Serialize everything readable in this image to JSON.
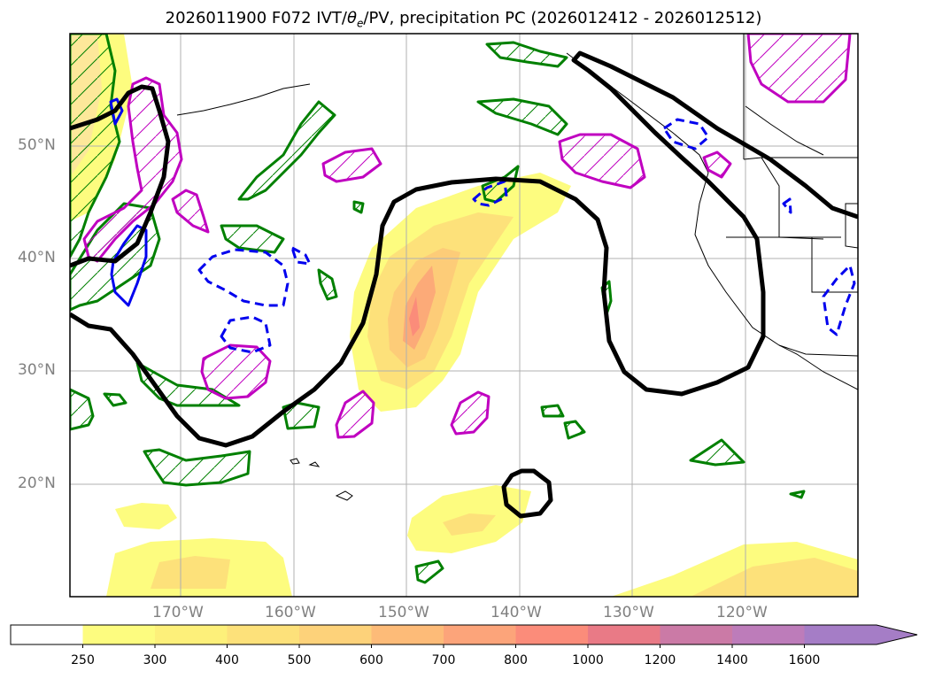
{
  "title": {
    "prefix": "2026011900 F072 IVT/",
    "theta": "θ",
    "theta_sub": "e",
    "suffix": "/PV, precipitation PC (2026012412 - 2026012512)"
  },
  "axes": {
    "lat_labels": [
      "50°N",
      "40°N",
      "30°N",
      "20°N"
    ],
    "lon_labels": [
      "170°W",
      "160°W",
      "150°W",
      "140°W",
      "130°W",
      "120°W"
    ]
  },
  "colorbar": {
    "levels": [
      "250",
      "300",
      "400",
      "500",
      "600",
      "700",
      "800",
      "1000",
      "1200",
      "1400",
      "1600"
    ],
    "colors": [
      "#ffffff",
      "#fdfc7f",
      "#fdf07a",
      "#fde17a",
      "#fdd27a",
      "#fdbb78",
      "#fca47a",
      "#fb8c7a",
      "#e97a86",
      "#cb7aa6",
      "#bd7cba",
      "#a57dc6"
    ]
  },
  "colors": {
    "ivt_fill_light": "#fdfc7f",
    "ivt_fill_mid": "#fde17a",
    "ivt_fill_high": "#fdbb78",
    "ivt_fill_peak": "#fb8c7a",
    "contour_green": "#008000",
    "contour_magenta": "#c000c0",
    "contour_blue": "#0000ee",
    "contour_black": "#000000",
    "grid": "#b0b0b0"
  }
}
